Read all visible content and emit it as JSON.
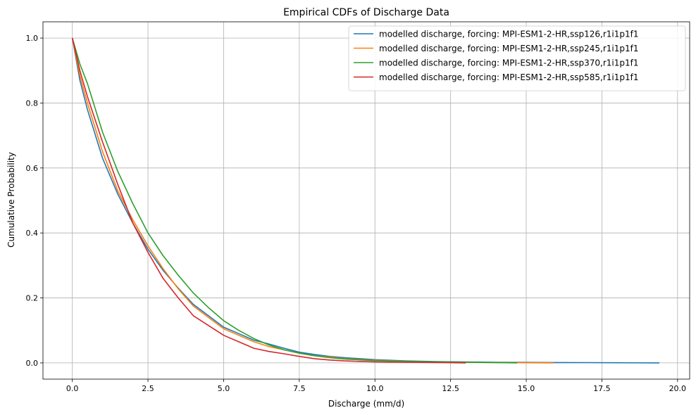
{
  "chart_data": {
    "type": "line",
    "title": "Empirical CDFs of Discharge Data",
    "xlabel": "Discharge (mm/d)",
    "ylabel": "Cumulative Probability",
    "xlim": [
      -0.97,
      20.4
    ],
    "ylim": [
      -0.05,
      1.05
    ],
    "xticks": [
      0.0,
      2.5,
      5.0,
      7.5,
      10.0,
      12.5,
      15.0,
      17.5,
      20.0
    ],
    "xtick_labels": [
      "0.0",
      "2.5",
      "5.0",
      "7.5",
      "10.0",
      "12.5",
      "15.0",
      "17.5",
      "20.0"
    ],
    "yticks": [
      0.0,
      0.2,
      0.4,
      0.6,
      0.8,
      1.0
    ],
    "ytick_labels": [
      "0.0",
      "0.2",
      "0.4",
      "0.6",
      "0.8",
      "1.0"
    ],
    "grid": true,
    "legend_position": "top-right",
    "series": [
      {
        "name": "modelled discharge, forcing: MPI-ESM1-2-HR,ssp126,r1i1p1f1",
        "color": "#1f77b4",
        "points": [
          [
            0,
            1.0
          ],
          [
            0.25,
            0.87
          ],
          [
            0.5,
            0.78
          ],
          [
            1.0,
            0.63
          ],
          [
            1.5,
            0.52
          ],
          [
            2.0,
            0.43
          ],
          [
            2.5,
            0.35
          ],
          [
            3.0,
            0.285
          ],
          [
            3.5,
            0.23
          ],
          [
            4.0,
            0.18
          ],
          [
            4.5,
            0.145
          ],
          [
            5.0,
            0.11
          ],
          [
            5.5,
            0.09
          ],
          [
            6.0,
            0.07
          ],
          [
            6.5,
            0.058
          ],
          [
            7.0,
            0.045
          ],
          [
            7.5,
            0.033
          ],
          [
            8.0,
            0.026
          ],
          [
            8.5,
            0.02
          ],
          [
            9.0,
            0.016
          ],
          [
            10.0,
            0.01
          ],
          [
            11.0,
            0.006
          ],
          [
            12.0,
            0.004
          ],
          [
            13.0,
            0.003
          ],
          [
            14.0,
            0.002
          ],
          [
            15.0,
            0.0015
          ],
          [
            16.0,
            0.001
          ],
          [
            17.0,
            0.0008
          ],
          [
            18.0,
            0.0005
          ],
          [
            19.4,
            0.0
          ]
        ]
      },
      {
        "name": "modelled discharge, forcing: MPI-ESM1-2-HR,ssp245,r1i1p1f1",
        "color": "#ff7f0e",
        "points": [
          [
            0,
            1.0
          ],
          [
            0.25,
            0.885
          ],
          [
            0.5,
            0.8
          ],
          [
            1.0,
            0.65
          ],
          [
            1.5,
            0.53
          ],
          [
            2.0,
            0.44
          ],
          [
            2.5,
            0.36
          ],
          [
            3.0,
            0.29
          ],
          [
            3.5,
            0.228
          ],
          [
            4.0,
            0.175
          ],
          [
            4.5,
            0.14
          ],
          [
            5.0,
            0.105
          ],
          [
            5.5,
            0.085
          ],
          [
            6.0,
            0.065
          ],
          [
            6.5,
            0.05
          ],
          [
            7.0,
            0.04
          ],
          [
            7.5,
            0.03
          ],
          [
            8.0,
            0.022
          ],
          [
            8.5,
            0.018
          ],
          [
            9.0,
            0.013
          ],
          [
            10.0,
            0.008
          ],
          [
            11.0,
            0.005
          ],
          [
            12.0,
            0.003
          ],
          [
            13.0,
            0.002
          ],
          [
            14.0,
            0.001
          ],
          [
            15.0,
            0.0005
          ],
          [
            15.9,
            0.0
          ]
        ]
      },
      {
        "name": "modelled discharge, forcing: MPI-ESM1-2-HR,ssp370,r1i1p1f1",
        "color": "#2ca02c",
        "points": [
          [
            0,
            1.0
          ],
          [
            0.25,
            0.92
          ],
          [
            0.5,
            0.86
          ],
          [
            1.0,
            0.71
          ],
          [
            1.5,
            0.59
          ],
          [
            2.0,
            0.49
          ],
          [
            2.5,
            0.4
          ],
          [
            3.0,
            0.33
          ],
          [
            3.5,
            0.27
          ],
          [
            4.0,
            0.215
          ],
          [
            4.5,
            0.17
          ],
          [
            5.0,
            0.13
          ],
          [
            5.5,
            0.1
          ],
          [
            6.0,
            0.075
          ],
          [
            6.5,
            0.055
          ],
          [
            7.0,
            0.04
          ],
          [
            7.5,
            0.03
          ],
          [
            8.0,
            0.022
          ],
          [
            8.5,
            0.016
          ],
          [
            9.0,
            0.012
          ],
          [
            10.0,
            0.007
          ],
          [
            11.0,
            0.005
          ],
          [
            12.0,
            0.003
          ],
          [
            13.0,
            0.002
          ],
          [
            14.0,
            0.001
          ],
          [
            14.7,
            0.0
          ]
        ]
      },
      {
        "name": "modelled discharge, forcing: MPI-ESM1-2-HR,ssp585,r1i1p1f1",
        "color": "#d62728",
        "points": [
          [
            0,
            1.0
          ],
          [
            0.25,
            0.9
          ],
          [
            0.5,
            0.82
          ],
          [
            1.0,
            0.68
          ],
          [
            1.5,
            0.55
          ],
          [
            2.0,
            0.43
          ],
          [
            2.5,
            0.34
          ],
          [
            3.0,
            0.26
          ],
          [
            3.5,
            0.2
          ],
          [
            4.0,
            0.145
          ],
          [
            4.5,
            0.115
          ],
          [
            5.0,
            0.085
          ],
          [
            5.5,
            0.065
          ],
          [
            6.0,
            0.045
          ],
          [
            6.5,
            0.035
          ],
          [
            7.0,
            0.028
          ],
          [
            7.5,
            0.02
          ],
          [
            8.0,
            0.013
          ],
          [
            8.5,
            0.009
          ],
          [
            9.0,
            0.006
          ],
          [
            10.0,
            0.003
          ],
          [
            11.0,
            0.002
          ],
          [
            12.0,
            0.001
          ],
          [
            13.0,
            0.0
          ]
        ]
      }
    ]
  }
}
